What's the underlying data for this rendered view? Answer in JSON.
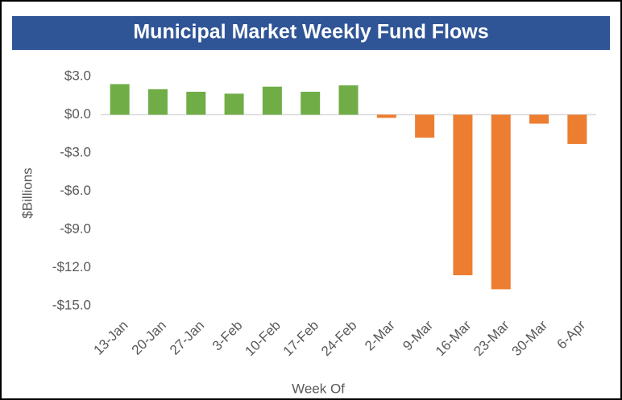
{
  "chart_data": {
    "type": "bar",
    "title": "Municipal Market Weekly Fund Flows",
    "x_label": "Week Of",
    "y_label": "$Billions",
    "categories": [
      "13-Jan",
      "20-Jan",
      "27-Jan",
      "3-Feb",
      "10-Feb",
      "17-Feb",
      "24-Feb",
      "2-Mar",
      "9-Mar",
      "16-Mar",
      "23-Mar",
      "30-Mar",
      "6-Apr"
    ],
    "values": [
      2.4,
      2.0,
      1.8,
      1.65,
      2.2,
      1.8,
      2.3,
      -0.25,
      -1.8,
      -12.6,
      -13.7,
      -0.7,
      -2.3
    ],
    "colors": [
      "#70ad47",
      "#70ad47",
      "#70ad47",
      "#70ad47",
      "#70ad47",
      "#70ad47",
      "#70ad47",
      "#ed7d31",
      "#ed7d31",
      "#ed7d31",
      "#ed7d31",
      "#ed7d31",
      "#ed7d31"
    ],
    "ylim": [
      -15,
      3
    ],
    "yticks": [
      {
        "value": 3,
        "label": "$3.0"
      },
      {
        "value": 0,
        "label": "$0.0"
      },
      {
        "value": -3,
        "label": "-$3.0"
      },
      {
        "value": -6,
        "label": "-$6.0"
      },
      {
        "value": -9,
        "label": "-$9.0"
      },
      {
        "value": -12,
        "label": "-$12.0"
      },
      {
        "value": -15,
        "label": "-$15.0"
      }
    ],
    "grid": false
  }
}
